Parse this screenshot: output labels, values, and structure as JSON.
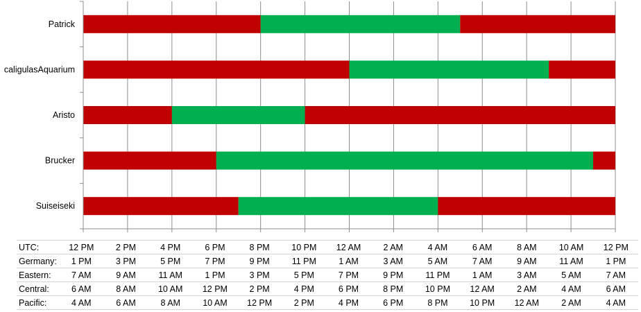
{
  "chart_data": {
    "type": "bar",
    "orientation": "horizontal",
    "stacked": true,
    "colors": {
      "offline": "#c00000",
      "online": "#00b050"
    },
    "x_range": [
      12,
      36
    ],
    "x_tick_step": 2,
    "categories": [
      "Patrick",
      "caligulasAquarium",
      "Aristo",
      "Brucker",
      "Suiseiseki"
    ],
    "segments": [
      [
        {
          "state": "offline",
          "start": 12,
          "end": 20
        },
        {
          "state": "online",
          "start": 20,
          "end": 29
        },
        {
          "state": "offline",
          "start": 29,
          "end": 36
        }
      ],
      [
        {
          "state": "offline",
          "start": 12,
          "end": 24
        },
        {
          "state": "online",
          "start": 24,
          "end": 33
        },
        {
          "state": "offline",
          "start": 33,
          "end": 36
        }
      ],
      [
        {
          "state": "offline",
          "start": 12,
          "end": 16
        },
        {
          "state": "online",
          "start": 16,
          "end": 22
        },
        {
          "state": "offline",
          "start": 22,
          "end": 36
        }
      ],
      [
        {
          "state": "offline",
          "start": 12,
          "end": 18
        },
        {
          "state": "online",
          "start": 18,
          "end": 35
        },
        {
          "state": "offline",
          "start": 35,
          "end": 36
        }
      ],
      [
        {
          "state": "offline",
          "start": 12,
          "end": 19
        },
        {
          "state": "online",
          "start": 19,
          "end": 28
        },
        {
          "state": "offline",
          "start": 28,
          "end": 36
        }
      ]
    ],
    "grid": true
  },
  "timezones": [
    {
      "zone": "UTC:",
      "times": [
        "12 PM",
        "2 PM",
        "4 PM",
        "6 PM",
        "8 PM",
        "10 PM",
        "12 AM",
        "2 AM",
        "4 AM",
        "6 AM",
        "8 AM",
        "10 AM",
        "12 PM"
      ]
    },
    {
      "zone": "Germany:",
      "times": [
        "1 PM",
        "3 PM",
        "5 PM",
        "7 PM",
        "9 PM",
        "11 PM",
        "1 AM",
        "3 AM",
        "5 AM",
        "7 AM",
        "9 AM",
        "11 AM",
        "1 PM"
      ]
    },
    {
      "zone": "Eastern:",
      "times": [
        "7 AM",
        "9 AM",
        "11 AM",
        "1 PM",
        "3 PM",
        "5 PM",
        "7 PM",
        "9 PM",
        "11 PM",
        "1 AM",
        "3 AM",
        "5 AM",
        "7 AM"
      ]
    },
    {
      "zone": "Central:",
      "times": [
        "6 AM",
        "8 AM",
        "10 AM",
        "12 PM",
        "2 PM",
        "4 PM",
        "6 PM",
        "8 PM",
        "10 PM",
        "12 AM",
        "2 AM",
        "4 AM",
        "6 AM"
      ]
    },
    {
      "zone": "Pacific:",
      "times": [
        "4 AM",
        "6 AM",
        "8 AM",
        "10 AM",
        "12 PM",
        "2 PM",
        "4 PM",
        "6 PM",
        "8 PM",
        "10 PM",
        "12 AM",
        "2 AM",
        "4 AM"
      ]
    }
  ]
}
